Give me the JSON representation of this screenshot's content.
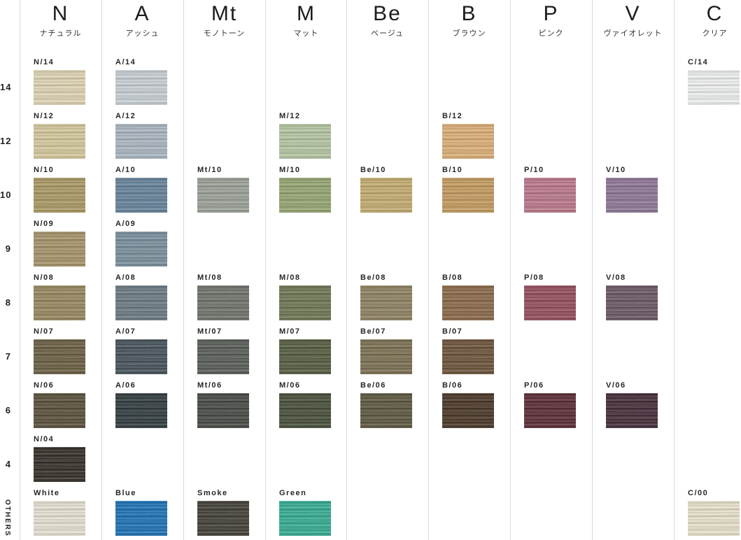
{
  "chart_data": {
    "type": "table",
    "row_levels": [
      "14",
      "12",
      "10",
      "9",
      "8",
      "7",
      "6",
      "4",
      "OTHERS"
    ],
    "columns": [
      {
        "code": "N",
        "name_ja": "ナチュラル",
        "cells": [
          {
            "row": "14",
            "label": "N/14",
            "color": "#dcd2b2"
          },
          {
            "row": "12",
            "label": "N/12",
            "color": "#d2c69c"
          },
          {
            "row": "10",
            "label": "N/10",
            "color": "#a99966"
          },
          {
            "row": "9",
            "label": "N/09",
            "color": "#a5936b"
          },
          {
            "row": "8",
            "label": "N/08",
            "color": "#968860"
          },
          {
            "row": "7",
            "label": "N/07",
            "color": "#6b6046"
          },
          {
            "row": "6",
            "label": "N/06",
            "color": "#5b523d"
          },
          {
            "row": "4",
            "label": "N/04",
            "color": "#37322b"
          },
          {
            "row": "OTHERS",
            "label": "White",
            "color": "#e2ded1"
          }
        ]
      },
      {
        "code": "A",
        "name_ja": "アッシュ",
        "cells": [
          {
            "row": "14",
            "label": "A/14",
            "color": "#c6cdd2"
          },
          {
            "row": "12",
            "label": "A/12",
            "color": "#a9b5bf"
          },
          {
            "row": "10",
            "label": "A/10",
            "color": "#68839a"
          },
          {
            "row": "9",
            "label": "A/09",
            "color": "#7a8f9c"
          },
          {
            "row": "8",
            "label": "A/08",
            "color": "#6d7a83"
          },
          {
            "row": "7",
            "label": "A/07",
            "color": "#48545c"
          },
          {
            "row": "6",
            "label": "A/06",
            "color": "#343e41"
          },
          {
            "row": "OTHERS",
            "label": "Blue",
            "color": "#2173b4"
          }
        ]
      },
      {
        "code": "Mt",
        "name_ja": "モノトーン",
        "cells": [
          {
            "row": "10",
            "label": "Mt/10",
            "color": "#9aa097"
          },
          {
            "row": "8",
            "label": "Mt/08",
            "color": "#70746c"
          },
          {
            "row": "7",
            "label": "Mt/07",
            "color": "#595e58"
          },
          {
            "row": "6",
            "label": "Mt/06",
            "color": "#484c46"
          },
          {
            "row": "OTHERS",
            "label": "Smoke",
            "color": "#45423a"
          }
        ]
      },
      {
        "code": "M",
        "name_ja": "マット",
        "cells": [
          {
            "row": "12",
            "label": "M/12",
            "color": "#b3c4a1"
          },
          {
            "row": "10",
            "label": "M/10",
            "color": "#95a473"
          },
          {
            "row": "8",
            "label": "M/08",
            "color": "#6e7755"
          },
          {
            "row": "7",
            "label": "M/07",
            "color": "#565e42"
          },
          {
            "row": "6",
            "label": "M/06",
            "color": "#49513c"
          },
          {
            "row": "OTHERS",
            "label": "Green",
            "color": "#38ab92"
          }
        ]
      },
      {
        "code": "Be",
        "name_ja": "ベージュ",
        "cells": [
          {
            "row": "10",
            "label": "Be/10",
            "color": "#c1ab71"
          },
          {
            "row": "8",
            "label": "Be/08",
            "color": "#8e8263"
          },
          {
            "row": "7",
            "label": "Be/07",
            "color": "#7b7154"
          },
          {
            "row": "6",
            "label": "Be/06",
            "color": "#5e5941"
          }
        ]
      },
      {
        "code": "B",
        "name_ja": "ブラウン",
        "cells": [
          {
            "row": "12",
            "label": "B/12",
            "color": "#d9ae78"
          },
          {
            "row": "10",
            "label": "B/10",
            "color": "#c29a61"
          },
          {
            "row": "8",
            "label": "B/08",
            "color": "#8a6a4d"
          },
          {
            "row": "7",
            "label": "B/07",
            "color": "#6e553e"
          },
          {
            "row": "6",
            "label": "B/06",
            "color": "#4c3a2b"
          }
        ]
      },
      {
        "code": "P",
        "name_ja": "ピンク",
        "cells": [
          {
            "row": "10",
            "label": "P/10",
            "color": "#b9798a"
          },
          {
            "row": "8",
            "label": "P/08",
            "color": "#944f5e"
          },
          {
            "row": "6",
            "label": "P/06",
            "color": "#5d2f38"
          }
        ]
      },
      {
        "code": "V",
        "name_ja": "ヴァイオレット",
        "cells": [
          {
            "row": "10",
            "label": "V/10",
            "color": "#8e7795"
          },
          {
            "row": "8",
            "label": "V/08",
            "color": "#6b5966"
          },
          {
            "row": "6",
            "label": "V/06",
            "color": "#46303c"
          }
        ]
      },
      {
        "code": "C",
        "name_ja": "クリア",
        "cells": [
          {
            "row": "14",
            "label": "C/14",
            "color": "#ebecec"
          },
          {
            "row": "OTHERS",
            "label": "C/00",
            "color": "#e5dfc9"
          }
        ]
      }
    ],
    "colors": {
      "divider": "#d9d9d9",
      "text": "#222222",
      "background": "#ffffff"
    }
  }
}
